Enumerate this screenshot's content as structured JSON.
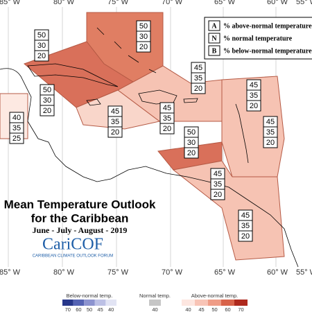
{
  "longitudes_top": [
    "85° W",
    "80° W",
    "75° W",
    "70° W",
    "65° W",
    "60° W",
    "55° W"
  ],
  "longitudes_bottom": [
    "85° W",
    "80° W",
    "75° W",
    "70° W",
    "65° W",
    "60° W",
    "55° W"
  ],
  "legend": {
    "rows": [
      {
        "key": "A",
        "text": "% above-normal temperature"
      },
      {
        "key": "N",
        "text": "% normal temperature"
      },
      {
        "key": "B",
        "text": "% below-normal temperature"
      }
    ]
  },
  "zones": [
    {
      "above": 50,
      "normal": 30,
      "below": 20
    },
    {
      "above": 50,
      "normal": 30,
      "below": 20
    },
    {
      "above": 50,
      "normal": 30,
      "below": 20
    },
    {
      "above": 45,
      "normal": 35,
      "below": 20
    },
    {
      "above": 45,
      "normal": 35,
      "below": 20
    },
    {
      "above": 45,
      "normal": 35,
      "below": 20
    },
    {
      "above": 45,
      "normal": 35,
      "below": 20
    },
    {
      "above": 40,
      "normal": 35,
      "below": 25
    },
    {
      "above": 50,
      "normal": 30,
      "below": 20
    },
    {
      "above": 45,
      "normal": 35,
      "below": 20
    },
    {
      "above": 45,
      "normal": 35,
      "below": 20
    },
    {
      "above": 45,
      "normal": 35,
      "below": 20
    }
  ],
  "title": {
    "line1": "Mean Temperature Outlook",
    "line2": "for the Caribbean",
    "season": "June - July - August - 2019"
  },
  "logo": {
    "name": "CariCOF",
    "tagline": "CARIBBEAN CLIMATE OUTLOOK FORUM"
  },
  "colorbar": {
    "below": {
      "label": "Below-normal temp.",
      "ticks": [
        70,
        60,
        50,
        45,
        40
      ]
    },
    "normal": {
      "label": "Normal temp.",
      "ticks": [
        40
      ]
    },
    "above": {
      "label": "Above-normal temp.",
      "ticks": [
        40,
        45,
        50,
        60,
        70
      ]
    }
  }
}
